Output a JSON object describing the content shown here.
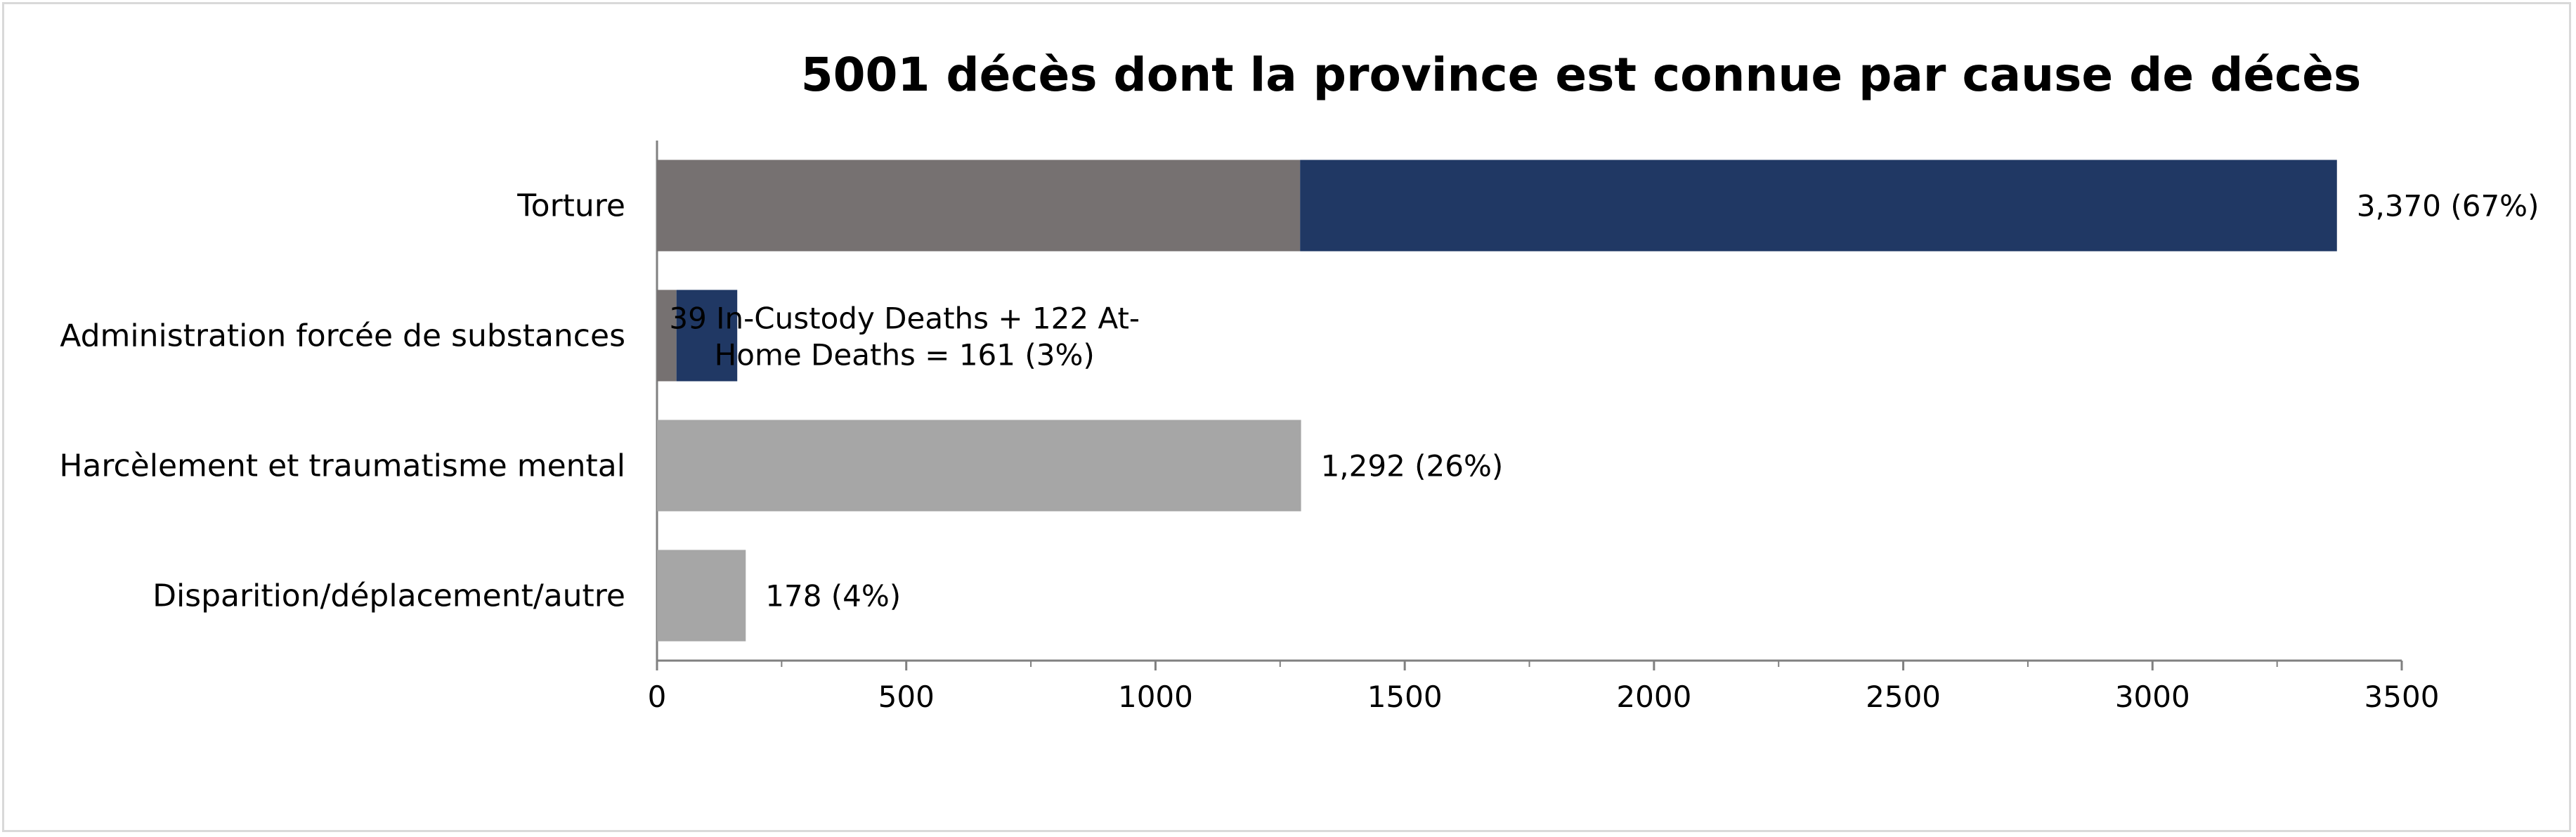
{
  "chart_data": {
    "type": "bar",
    "orientation": "horizontal",
    "stacked": true,
    "title": "5001 décès dont la province est connue par cause de décès",
    "xlabel": "",
    "ylabel": "",
    "xlim": [
      0,
      3500
    ],
    "xticks": [
      0,
      500,
      1000,
      1500,
      2000,
      2500,
      3000,
      3500
    ],
    "grid": false,
    "legend": "none",
    "categories": [
      "Torture",
      "Administration forcée de substances",
      "Harcèlement et traumatisme mental",
      "Disparition/déplacement/autre"
    ],
    "segments": [
      [
        {
          "value": 1290,
          "color": "#767171"
        },
        {
          "value": 2080,
          "color": "#203864"
        }
      ],
      [
        {
          "value": 39,
          "color": "#767171"
        },
        {
          "value": 122,
          "color": "#203864"
        }
      ],
      [
        {
          "value": 1292,
          "color": "#a6a6a6"
        }
      ],
      [
        {
          "value": 178,
          "color": "#a6a6a6"
        }
      ]
    ],
    "data_labels": [
      [
        "3,370 (67%)"
      ],
      [
        "39 In-Custody Deaths + 122 At-",
        "Home Deaths = 161 (3%)"
      ],
      [
        "1,292 (26%)"
      ],
      [
        "178 (4%)"
      ]
    ],
    "colors": {
      "axis": "#808080",
      "custody": "#767171",
      "home": "#203864",
      "other": "#a6a6a6"
    }
  }
}
